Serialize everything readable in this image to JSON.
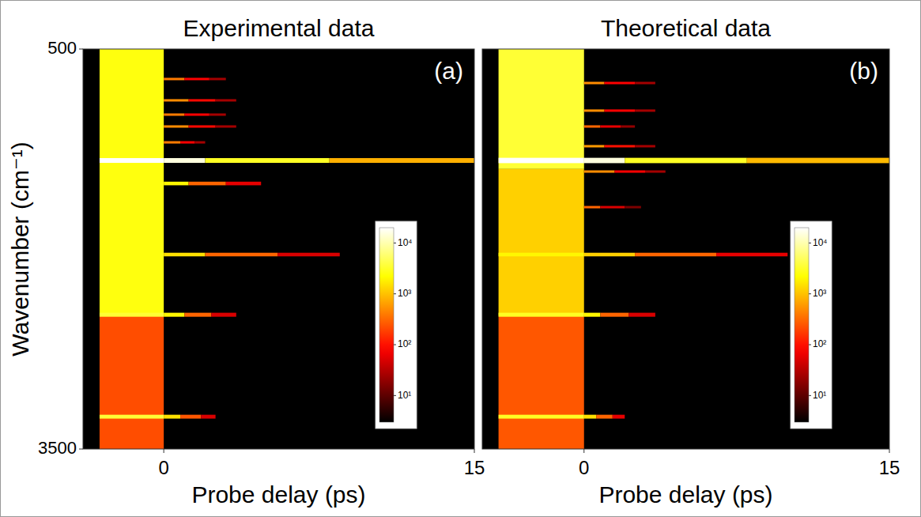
{
  "chart_data": [
    {
      "type": "heatmap",
      "title": "Experimental data",
      "annotation": "(a)",
      "x_label": "Probe delay (ps)",
      "y_label": "Wavenumber (cm⁻¹)",
      "xlim": [
        -3.9,
        15
      ],
      "ylim": [
        3500,
        500
      ],
      "xticks": [
        0,
        15
      ],
      "yticks": [
        500,
        3500
      ],
      "colorbar": {
        "range": [
          3,
          20000
        ],
        "log": true,
        "ticks": [
          {
            "value": 10,
            "label": "10¹"
          },
          {
            "value": 100,
            "label": "10²"
          },
          {
            "value": 1000,
            "label": "10³"
          },
          {
            "value": 10000,
            "label": "10⁴"
          }
        ]
      },
      "cells": [
        {
          "x": [
            -3.1,
            0
          ],
          "y": [
            500,
            2500
          ],
          "value": 2500
        },
        {
          "x": [
            -3.1,
            0
          ],
          "y": [
            2500,
            3500
          ],
          "value": 220
        },
        {
          "x": [
            -3.1,
            0
          ],
          "y": [
            1318,
            1354
          ],
          "value": 20000
        },
        {
          "x": [
            -3.1,
            0
          ],
          "y": [
            2478,
            2508
          ],
          "value": 3500
        },
        {
          "x": [
            -3.1,
            0
          ],
          "y": [
            3243,
            3272
          ],
          "value": 3500
        },
        {
          "x": [
            0,
            2
          ],
          "y": [
            1318,
            1354
          ],
          "value": 15000
        },
        {
          "x": [
            2,
            8
          ],
          "y": [
            1318,
            1354
          ],
          "value": 3000
        },
        {
          "x": [
            8,
            15
          ],
          "y": [
            1318,
            1354
          ],
          "value": 800
        },
        {
          "x": [
            0,
            1.2
          ],
          "y": [
            1495,
            1522
          ],
          "value": 2000
        },
        {
          "x": [
            1.2,
            3
          ],
          "y": [
            1495,
            1522
          ],
          "value": 300
        },
        {
          "x": [
            3,
            4.7
          ],
          "y": [
            1495,
            1522
          ],
          "value": 60
        },
        {
          "x": [
            0,
            2
          ],
          "y": [
            2028,
            2055
          ],
          "value": 1500
        },
        {
          "x": [
            2,
            5.5
          ],
          "y": [
            2028,
            2055
          ],
          "value": 300
        },
        {
          "x": [
            5.5,
            8.5
          ],
          "y": [
            2028,
            2055
          ],
          "value": 50
        },
        {
          "x": [
            0,
            1
          ],
          "y": [
            2478,
            2508
          ],
          "value": 2000
        },
        {
          "x": [
            1,
            2.3
          ],
          "y": [
            2478,
            2508
          ],
          "value": 300
        },
        {
          "x": [
            2.3,
            3.5
          ],
          "y": [
            2478,
            2508
          ],
          "value": 50
        },
        {
          "x": [
            0,
            0.8
          ],
          "y": [
            3243,
            3272
          ],
          "value": 1500
        },
        {
          "x": [
            0.8,
            1.8
          ],
          "y": [
            3243,
            3272
          ],
          "value": 250
        },
        {
          "x": [
            1.8,
            2.5
          ],
          "y": [
            3243,
            3272
          ],
          "value": 50
        },
        {
          "x": [
            0,
            1
          ],
          "y": [
            716,
            734
          ],
          "value": 400
        },
        {
          "x": [
            1,
            2.2
          ],
          "y": [
            716,
            734
          ],
          "value": 80
        },
        {
          "x": [
            2.2,
            3
          ],
          "y": [
            716,
            734
          ],
          "value": 25
        },
        {
          "x": [
            0,
            1.2
          ],
          "y": [
            876,
            894
          ],
          "value": 500
        },
        {
          "x": [
            1.2,
            2.5
          ],
          "y": [
            876,
            894
          ],
          "value": 90
        },
        {
          "x": [
            2.5,
            3.5
          ],
          "y": [
            876,
            894
          ],
          "value": 25
        },
        {
          "x": [
            0,
            1
          ],
          "y": [
            983,
            1001
          ],
          "value": 400
        },
        {
          "x": [
            1,
            2.2
          ],
          "y": [
            983,
            1001
          ],
          "value": 80
        },
        {
          "x": [
            2.2,
            3
          ],
          "y": [
            983,
            1001
          ],
          "value": 25
        },
        {
          "x": [
            0,
            1.2
          ],
          "y": [
            1072,
            1090
          ],
          "value": 500
        },
        {
          "x": [
            1.2,
            2.5
          ],
          "y": [
            1072,
            1090
          ],
          "value": 90
        },
        {
          "x": [
            2.5,
            3.5
          ],
          "y": [
            1072,
            1090
          ],
          "value": 25
        },
        {
          "x": [
            0,
            0.8
          ],
          "y": [
            1191,
            1209
          ],
          "value": 400
        },
        {
          "x": [
            0.8,
            1.5
          ],
          "y": [
            1191,
            1209
          ],
          "value": 80
        },
        {
          "x": [
            1.5,
            2
          ],
          "y": [
            1191,
            1209
          ],
          "value": 25
        }
      ]
    },
    {
      "type": "heatmap",
      "title": "Theoretical data",
      "annotation": "(b)",
      "x_label": "Probe delay (ps)",
      "xlim": [
        -5,
        15
      ],
      "ylim": [
        3500,
        500
      ],
      "xticks": [
        0,
        15
      ],
      "tick_labels": "x",
      "colorbar": {
        "range": [
          3,
          20000
        ],
        "log": true,
        "ticks": [
          {
            "value": 10,
            "label": "10¹"
          },
          {
            "value": 100,
            "label": "10²"
          },
          {
            "value": 1000,
            "label": "10³"
          },
          {
            "value": 10000,
            "label": "10⁴"
          }
        ]
      },
      "cells": [
        {
          "x": [
            -4.2,
            0
          ],
          "y": [
            500,
            1400
          ],
          "value": 3500
        },
        {
          "x": [
            -4.2,
            0
          ],
          "y": [
            1400,
            2500
          ],
          "value": 1200
        },
        {
          "x": [
            -4.2,
            0
          ],
          "y": [
            2500,
            3500
          ],
          "value": 250
        },
        {
          "x": [
            -4.2,
            0
          ],
          "y": [
            1316,
            1356
          ],
          "value": 20000
        },
        {
          "x": [
            -4.2,
            0
          ],
          "y": [
            2028,
            2055
          ],
          "value": 2000
        },
        {
          "x": [
            -4.2,
            0
          ],
          "y": [
            2478,
            2508
          ],
          "value": 3000
        },
        {
          "x": [
            -4.2,
            0
          ],
          "y": [
            3243,
            3272
          ],
          "value": 3000
        },
        {
          "x": [
            0,
            2
          ],
          "y": [
            1316,
            1356
          ],
          "value": 15000
        },
        {
          "x": [
            2,
            8
          ],
          "y": [
            1316,
            1356
          ],
          "value": 3000
        },
        {
          "x": [
            8,
            15
          ],
          "y": [
            1316,
            1356
          ],
          "value": 900
        },
        {
          "x": [
            0,
            1
          ],
          "y": [
            1220,
            1238
          ],
          "value": 600
        },
        {
          "x": [
            1,
            2.5
          ],
          "y": [
            1220,
            1238
          ],
          "value": 100
        },
        {
          "x": [
            2.5,
            3.5
          ],
          "y": [
            1220,
            1238
          ],
          "value": 25
        },
        {
          "x": [
            0,
            1.5
          ],
          "y": [
            1410,
            1428
          ],
          "value": 500
        },
        {
          "x": [
            1.5,
            3
          ],
          "y": [
            1410,
            1428
          ],
          "value": 80
        },
        {
          "x": [
            3,
            4
          ],
          "y": [
            1410,
            1428
          ],
          "value": 25
        },
        {
          "x": [
            0,
            0.8
          ],
          "y": [
            1677,
            1695
          ],
          "value": 300
        },
        {
          "x": [
            0.8,
            2
          ],
          "y": [
            1677,
            1695
          ],
          "value": 50
        },
        {
          "x": [
            2,
            2.8
          ],
          "y": [
            1677,
            1695
          ],
          "value": 15
        },
        {
          "x": [
            0,
            2.5
          ],
          "y": [
            2028,
            2055
          ],
          "value": 1200
        },
        {
          "x": [
            2.5,
            6.5
          ],
          "y": [
            2028,
            2055
          ],
          "value": 300
        },
        {
          "x": [
            6.5,
            10
          ],
          "y": [
            2028,
            2055
          ],
          "value": 60
        },
        {
          "x": [
            0,
            0.8
          ],
          "y": [
            2478,
            2508
          ],
          "value": 2000
        },
        {
          "x": [
            0.8,
            2.2
          ],
          "y": [
            2478,
            2508
          ],
          "value": 300
        },
        {
          "x": [
            2.2,
            3.5
          ],
          "y": [
            2478,
            2508
          ],
          "value": 50
        },
        {
          "x": [
            0,
            0.6
          ],
          "y": [
            3243,
            3272
          ],
          "value": 1500
        },
        {
          "x": [
            0.6,
            1.4
          ],
          "y": [
            3243,
            3272
          ],
          "value": 300
        },
        {
          "x": [
            1.4,
            2
          ],
          "y": [
            3243,
            3272
          ],
          "value": 60
        },
        {
          "x": [
            0,
            1
          ],
          "y": [
            746,
            764
          ],
          "value": 500
        },
        {
          "x": [
            1,
            2.5
          ],
          "y": [
            746,
            764
          ],
          "value": 80
        },
        {
          "x": [
            2.5,
            3.5
          ],
          "y": [
            746,
            764
          ],
          "value": 25
        },
        {
          "x": [
            0,
            1
          ],
          "y": [
            953,
            971
          ],
          "value": 500
        },
        {
          "x": [
            1,
            2.5
          ],
          "y": [
            953,
            971
          ],
          "value": 80
        },
        {
          "x": [
            2.5,
            3.5
          ],
          "y": [
            953,
            971
          ],
          "value": 25
        },
        {
          "x": [
            0,
            0.8
          ],
          "y": [
            1072,
            1090
          ],
          "value": 300
        },
        {
          "x": [
            0.8,
            1.8
          ],
          "y": [
            1072,
            1090
          ],
          "value": 60
        },
        {
          "x": [
            1.8,
            2.5
          ],
          "y": [
            1072,
            1090
          ],
          "value": 20
        }
      ]
    }
  ]
}
